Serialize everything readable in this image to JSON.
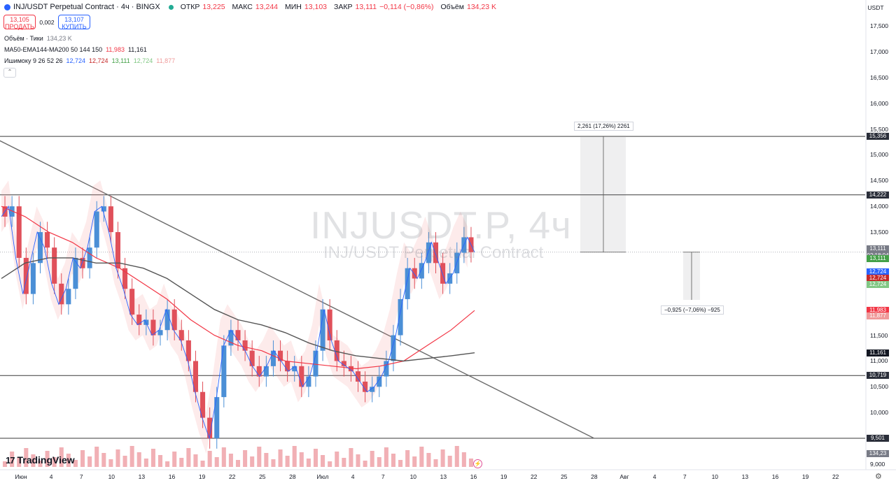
{
  "header": {
    "title": "INJ/USDT Perpetual Contract · 4ч · BINGX",
    "open_label": "ОТКР",
    "open": "13,225",
    "high_label": "МАКС",
    "high": "13,244",
    "low_label": "МИН",
    "low": "13,103",
    "close_label": "ЗАКР",
    "close": "13,111",
    "change": "−0,114 (−0,86%)",
    "volume_label": "Объём",
    "volume": "134,23 K"
  },
  "trade": {
    "sell_price": "13,105",
    "sell_label": "ПРОДАТЬ",
    "spread": "0,002",
    "buy_price": "13,107",
    "buy_label": "КУПИТЬ"
  },
  "indicators": {
    "vol_name": "Объём · Тики",
    "vol_value": "134,23 K",
    "ma_name": "MA50-EMA144-MA200 50 144 150",
    "ma_v1": "11,983",
    "ma_v2": "11,161",
    "ichi_name": "Ишимоку 9 26 52 26",
    "ichi_v1": "12,724",
    "ichi_v2": "12,724",
    "ichi_v3": "13,111",
    "ichi_v4": "12,724",
    "ichi_v5": "11,877"
  },
  "watermark": {
    "symbol": "INJUSDT.P, 4ч",
    "description": "INJ/USDT Perpetual Contract"
  },
  "currency": "USDT",
  "branding": "TradingView",
  "colors": {
    "up": "#4b8fd6",
    "down": "#e0505a",
    "accent": "#2962ff",
    "kijun": "#f23645",
    "tenkan": "#2962ff",
    "chikou": "#43a047",
    "ma200": "#555555"
  },
  "chart_data": {
    "type": "candlestick",
    "symbol": "INJUSDT.P",
    "timeframe": "4ч",
    "y_ticks": [
      "17,500",
      "17,000",
      "16,500",
      "16,000",
      "15,500",
      "15,000",
      "14,500",
      "14,000",
      "13,500",
      "13,000",
      "12,500",
      "12,000",
      "11,500",
      "11,000",
      "10,500",
      "10,000",
      "9,500",
      "9,000"
    ],
    "ylim": [
      9.0,
      17.8
    ],
    "x_ticks": [
      "Июн",
      "4",
      "7",
      "10",
      "13",
      "16",
      "19",
      "22",
      "25",
      "28",
      "Июл",
      "4",
      "7",
      "10",
      "13",
      "16",
      "19",
      "22",
      "25",
      "28",
      "Авг",
      "4",
      "7",
      "10",
      "13",
      "16",
      "19",
      "22"
    ],
    "horizontal_levels": [
      {
        "label": "15,356",
        "value": 15.356
      },
      {
        "label": "14,222",
        "value": 14.222
      },
      {
        "label": "10,719",
        "value": 10.719
      },
      {
        "label": "9,501",
        "value": 9.501
      }
    ],
    "price_labels": [
      {
        "label": "13,111",
        "sub": "02:18:04",
        "value": 13.111,
        "color": "#787b86"
      },
      {
        "label": "13,111",
        "value": 12.98,
        "color": "#43a047"
      },
      {
        "label": "12,724",
        "value": 12.724,
        "color": "#2962ff"
      },
      {
        "label": "12,724",
        "value": 12.6,
        "color": "#c62828"
      },
      {
        "label": "12,724",
        "value": 12.48,
        "color": "#81c784"
      },
      {
        "label": "11,983",
        "value": 11.983,
        "color": "#f23645"
      },
      {
        "label": "11,877",
        "value": 11.877,
        "color": "#ef9a9a"
      },
      {
        "label": "11,161",
        "value": 11.161,
        "color": "#131722"
      },
      {
        "label": "134,23 K",
        "value": 9.2,
        "color": "#787b86"
      }
    ],
    "measurements": [
      {
        "text": "2,261 (17,26%) 2261",
        "from": 13.111,
        "to": 15.356
      },
      {
        "text": "−0,925 (−7,06%) −925",
        "from": 13.111,
        "to": 12.186
      }
    ],
    "trendline": {
      "from": {
        "x": "2024-05-29",
        "y": 15.36
      },
      "to": {
        "x": "2024-07-28",
        "y": 9.5
      }
    },
    "series": [
      {
        "name": "MA50",
        "values": [
          14.0,
          13.8,
          13.5,
          13.3,
          13.0,
          12.8,
          12.5,
          12.2,
          11.8,
          11.5,
          11.3,
          11.2,
          11.0,
          10.95,
          10.9,
          10.85,
          10.9,
          11.0,
          11.3,
          11.6,
          11.98
        ]
      },
      {
        "name": "MA200",
        "values": [
          12.6,
          12.9,
          13.0,
          13.0,
          12.9,
          12.9,
          12.8,
          12.6,
          12.3,
          12.0,
          11.8,
          11.7,
          11.55,
          11.35,
          11.2,
          11.1,
          11.05,
          11.0,
          11.05,
          11.1,
          11.16
        ]
      }
    ],
    "candles_close": [
      13.8,
      14.0,
      13.0,
      12.3,
      12.9,
      13.5,
      13.2,
      12.5,
      12.1,
      12.4,
      13.0,
      12.8,
      13.2,
      13.9,
      14.0,
      13.5,
      12.8,
      12.4,
      11.9,
      11.7,
      11.8,
      11.5,
      11.6,
      12.0,
      11.6,
      11.4,
      11.0,
      10.4,
      9.9,
      9.5,
      10.3,
      11.3,
      11.6,
      11.4,
      11.2,
      10.9,
      10.7,
      10.9,
      11.2,
      11.0,
      10.8,
      10.9,
      10.5,
      10.7,
      11.2,
      12.0,
      11.4,
      11.0,
      10.9,
      10.8,
      10.6,
      10.4,
      10.5,
      10.7,
      11.0,
      11.5,
      12.2,
      12.8,
      12.6,
      12.9,
      13.3,
      12.9,
      12.5,
      12.7,
      13.1,
      13.4,
      13.111
    ]
  }
}
